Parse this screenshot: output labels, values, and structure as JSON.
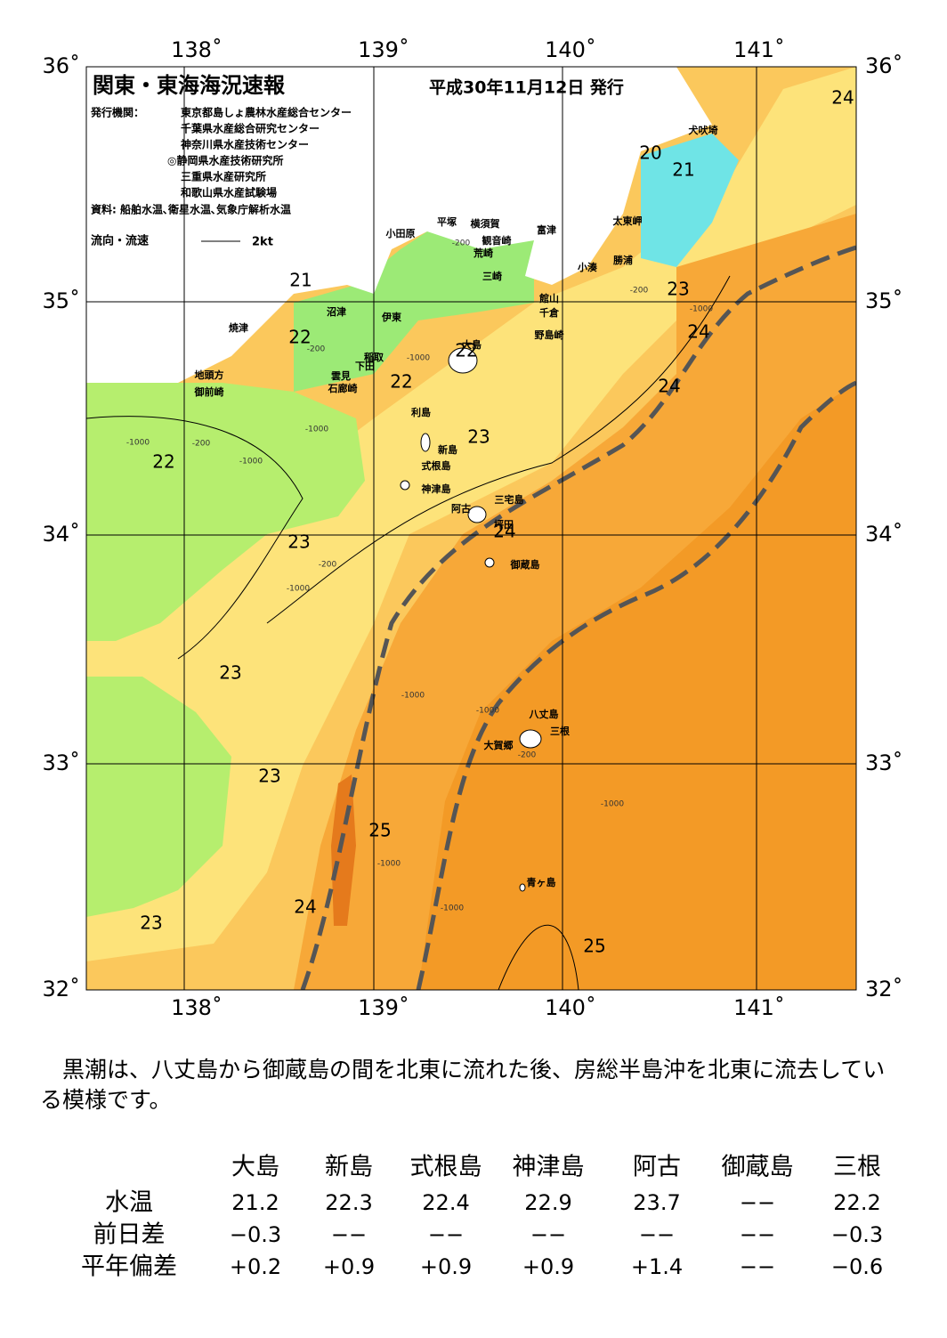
{
  "map": {
    "title": "関東・東海海況速報",
    "date": "平成30年11月12日 発行",
    "issuer_label": "発行機関：",
    "issuers": [
      "東京都島しょ農林水産総合センター",
      "千葉県水産総合研究センター",
      "神奈川県水産技術センター",
      "◎静岡県水産技術研究所",
      "三重県水産研究所",
      "和歌山県水産試験場"
    ],
    "source": "資料: 船舶水温､衛星水温､気象庁解析水温",
    "legend_label": "流向・流速",
    "legend_scale": "2kt",
    "lon_labels": [
      "138˚",
      "139˚",
      "140˚",
      "141˚"
    ],
    "lat_labels": [
      "36˚",
      "35˚",
      "34˚",
      "33˚",
      "32˚"
    ],
    "places": [
      "犬吠埼",
      "太東岬",
      "勝浦",
      "小湊",
      "富津",
      "館山",
      "千倉",
      "野島崎",
      "横須賀",
      "観音崎",
      "荒崎",
      "三崎",
      "平塚",
      "小田原",
      "沼津",
      "伊東",
      "焼津",
      "稲取",
      "下田",
      "雲見",
      "石廊崎",
      "地頭方",
      "御前崎",
      "大島",
      "利島",
      "新島",
      "式根島",
      "神津島",
      "三宅島",
      "阿古",
      "坪田",
      "御蔵島",
      "八丈島",
      "三根",
      "大賀郷",
      "青ヶ島"
    ],
    "temp_labels": [
      "24",
      "20",
      "21",
      "23",
      "24",
      "24",
      "21",
      "22",
      "22",
      "22",
      "22",
      "23",
      "24",
      "23",
      "23",
      "23",
      "25",
      "24",
      "23",
      "25"
    ],
    "depth_labels": [
      "-200",
      "-1000",
      "-200",
      "-1000",
      "-1000",
      "-200",
      "-1000",
      "-200",
      "-1000",
      "-1000",
      "-1000",
      "-200",
      "-1000",
      "-1000",
      "-1000",
      "-200",
      "-1000"
    ]
  },
  "text": "　黒潮は、八丈島から御蔵島の間を北東に流れた後、房総半島沖を北東に流去している模様です。",
  "table": {
    "columns": [
      "大島",
      "新島",
      "式根島",
      "神津島",
      "阿古",
      "御蔵島",
      "三根"
    ],
    "rows": [
      {
        "label": "水温",
        "values": [
          "21.2",
          "22.3",
          "22.4",
          "22.9",
          "23.7",
          "−−",
          "22.2"
        ]
      },
      {
        "label": "前日差",
        "values": [
          "−0.3",
          "−−",
          "−−",
          "−−",
          "−−",
          "−−",
          "−0.3"
        ]
      },
      {
        "label": "平年偏差",
        "values": [
          "+0.2",
          "+0.9",
          "+0.9",
          "+0.9",
          "+1.4",
          "−−",
          "−0.6"
        ]
      }
    ]
  }
}
